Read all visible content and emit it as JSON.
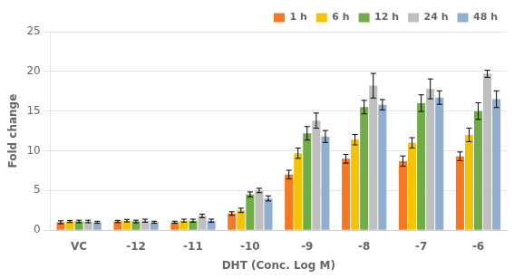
{
  "chart_data": {
    "type": "bar",
    "categories": [
      "VC",
      "-12",
      "-11",
      "-10",
      "-9",
      "-8",
      "-7",
      "-6"
    ],
    "xlabel": "DHT (Conc. Log M)",
    "ylabel": "Fold change",
    "ylim": [
      0,
      25
    ],
    "yticks": [
      0,
      5,
      10,
      15,
      20,
      25
    ],
    "grid": true,
    "legend": "upper right",
    "series": [
      {
        "name": "1 h",
        "color": "#F47920",
        "values": [
          1.0,
          1.1,
          1.0,
          2.1,
          7.0,
          9.0,
          8.7,
          9.3
        ],
        "errors": [
          0.18,
          0.14,
          0.13,
          0.22,
          0.55,
          0.55,
          0.65,
          0.55
        ]
      },
      {
        "name": "6 h",
        "color": "#F5C400",
        "values": [
          1.1,
          1.2,
          1.2,
          2.5,
          9.7,
          11.4,
          11.0,
          12.0
        ],
        "errors": [
          0.13,
          0.16,
          0.19,
          0.27,
          0.65,
          0.65,
          0.65,
          0.85
        ]
      },
      {
        "name": "12 h",
        "color": "#70AD47",
        "values": [
          1.1,
          1.1,
          1.2,
          4.5,
          12.2,
          15.5,
          16.0,
          15.0
        ],
        "errors": [
          0.16,
          0.16,
          0.19,
          0.32,
          0.85,
          0.85,
          1.05,
          1.05
        ]
      },
      {
        "name": "24 h",
        "color": "#BFBFBF",
        "values": [
          1.1,
          1.2,
          1.8,
          5.0,
          13.8,
          18.2,
          17.8,
          19.7
        ],
        "errors": [
          0.16,
          0.19,
          0.22,
          0.27,
          0.95,
          1.55,
          1.25,
          0.45
        ]
      },
      {
        "name": "48 h",
        "color": "#92AECF",
        "values": [
          1.0,
          1.0,
          1.2,
          4.0,
          11.8,
          15.8,
          16.7,
          16.5
        ],
        "errors": [
          0.13,
          0.13,
          0.19,
          0.32,
          0.75,
          0.65,
          0.85,
          1.05
        ]
      }
    ]
  }
}
